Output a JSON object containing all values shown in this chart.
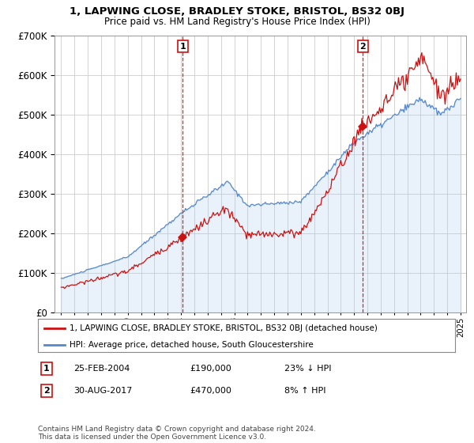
{
  "title": "1, LAPWING CLOSE, BRADLEY STOKE, BRISTOL, BS32 0BJ",
  "subtitle": "Price paid vs. HM Land Registry's House Price Index (HPI)",
  "legend_line1": "1, LAPWING CLOSE, BRADLEY STOKE, BRISTOL, BS32 0BJ (detached house)",
  "legend_line2": "HPI: Average price, detached house, South Gloucestershire",
  "sale1_date": "25-FEB-2004",
  "sale1_price": 190000,
  "sale1_hpi_pct": "23% ↓ HPI",
  "sale2_date": "30-AUG-2017",
  "sale2_price": 470000,
  "sale2_hpi_pct": "8% ↑ HPI",
  "footnote": "Contains HM Land Registry data © Crown copyright and database right 2024.\nThis data is licensed under the Open Government Licence v3.0.",
  "hpi_color": "#5588cc",
  "hpi_fill_color": "#aaccee",
  "price_color": "#cc1111",
  "sale_marker_color": "#cc1111",
  "background_color": "#ffffff",
  "grid_color": "#cccccc",
  "ylim": [
    0,
    700000
  ],
  "sale1_year": 2004.13,
  "sale2_year": 2017.66
}
